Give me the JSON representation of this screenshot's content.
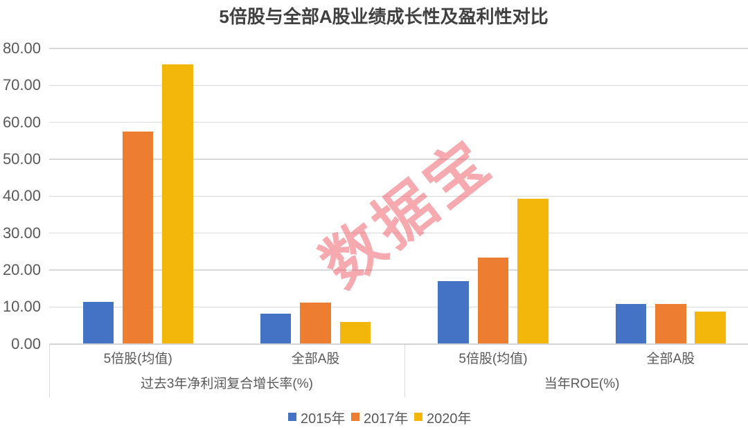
{
  "title": "5倍股与全部A股业绩成长性及盈利性对比",
  "watermark": "数据宝",
  "colors": {
    "series_2015": "#4472c4",
    "series_2017": "#ed7d31",
    "series_2020": "#f2b70a",
    "gridline": "#d9d9d9",
    "axis_text": "#595959",
    "title_text": "#404040",
    "watermark_pink": "rgba(230,82,94,0.5)"
  },
  "chart_data": {
    "type": "bar",
    "title": "5倍股与全部A股业绩成长性及盈利性对比",
    "group_labels": [
      "过去3年净利润复合增长率(%)",
      "当年ROE(%)"
    ],
    "categories": [
      "5倍股(均值)",
      "全部A股",
      "5倍股(均值)",
      "全部A股"
    ],
    "series": [
      {
        "name": "2015年",
        "color": "#4472c4",
        "values": [
          11.4,
          8.1,
          16.9,
          10.8
        ]
      },
      {
        "name": "2017年",
        "color": "#ed7d31",
        "values": [
          57.6,
          11.2,
          23.3,
          10.7
        ]
      },
      {
        "name": "2020年",
        "color": "#f2b70a",
        "values": [
          75.8,
          5.9,
          39.4,
          8.8
        ]
      }
    ],
    "xlabel": "",
    "ylabel": "",
    "ylim": [
      0,
      80
    ],
    "ytick_step": 10,
    "ytick_labels": [
      "0.00",
      "10.00",
      "20.00",
      "30.00",
      "40.00",
      "50.00",
      "60.00",
      "70.00",
      "80.00"
    ],
    "grid": true,
    "legend_position": "bottom"
  }
}
